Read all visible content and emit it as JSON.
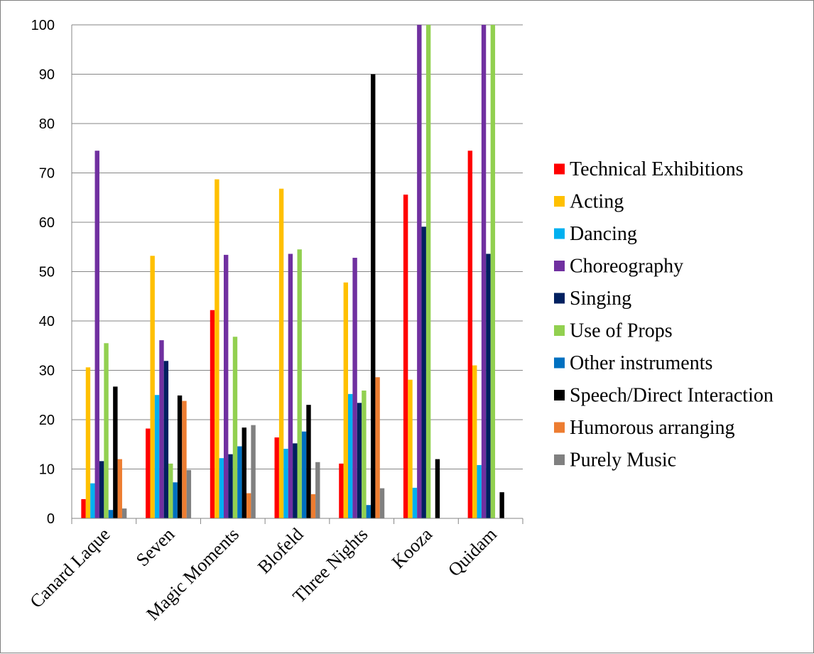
{
  "chart_data": {
    "type": "bar",
    "title": "",
    "xlabel": "",
    "ylabel": "",
    "ylim": [
      0,
      100
    ],
    "yticks": [
      0,
      10,
      20,
      30,
      40,
      50,
      60,
      70,
      80,
      90,
      100
    ],
    "grid": true,
    "legend_position": "right",
    "categories": [
      "Canard Laque",
      "Seven",
      "Magic Moments",
      "Blofeld",
      "Three Nights",
      "Kooza",
      "Quidam"
    ],
    "series": [
      {
        "name": "Technical Exhibitions",
        "color": "#ff0000",
        "values": [
          3.9,
          18.2,
          42.2,
          16.4,
          11.1,
          65.6,
          74.5
        ]
      },
      {
        "name": "Acting",
        "color": "#ffc000",
        "values": [
          30.6,
          53.2,
          68.7,
          66.8,
          47.8,
          28.1,
          31.0
        ]
      },
      {
        "name": "Dancing",
        "color": "#00b0f0",
        "values": [
          7.1,
          25.0,
          12.2,
          14.1,
          25.2,
          6.2,
          10.8
        ]
      },
      {
        "name": "Choreography",
        "color": "#7030a0",
        "values": [
          74.5,
          36.1,
          53.4,
          53.6,
          52.8,
          100,
          100
        ]
      },
      {
        "name": "Singing",
        "color": "#002060",
        "values": [
          11.6,
          31.9,
          13.0,
          15.2,
          23.4,
          59.1,
          53.6
        ]
      },
      {
        "name": "Use of Props",
        "color": "#92d050",
        "values": [
          35.5,
          11.1,
          36.8,
          54.5,
          25.9,
          100,
          100
        ]
      },
      {
        "name": "Other instruments",
        "color": "#0070c0",
        "values": [
          1.7,
          7.3,
          14.6,
          17.6,
          2.7,
          0,
          0
        ]
      },
      {
        "name": "Speech/Direct Interaction",
        "color": "#000000",
        "values": [
          26.7,
          24.9,
          18.4,
          23.0,
          90.0,
          12.0,
          5.3
        ]
      },
      {
        "name": "Humorous arranging",
        "color": "#ed7d31",
        "values": [
          12.0,
          23.8,
          5.1,
          4.9,
          28.6,
          0,
          0
        ]
      },
      {
        "name": "Purely Music",
        "color": "#808080",
        "values": [
          2.0,
          9.8,
          18.9,
          11.4,
          6.1,
          0,
          0
        ]
      }
    ]
  }
}
